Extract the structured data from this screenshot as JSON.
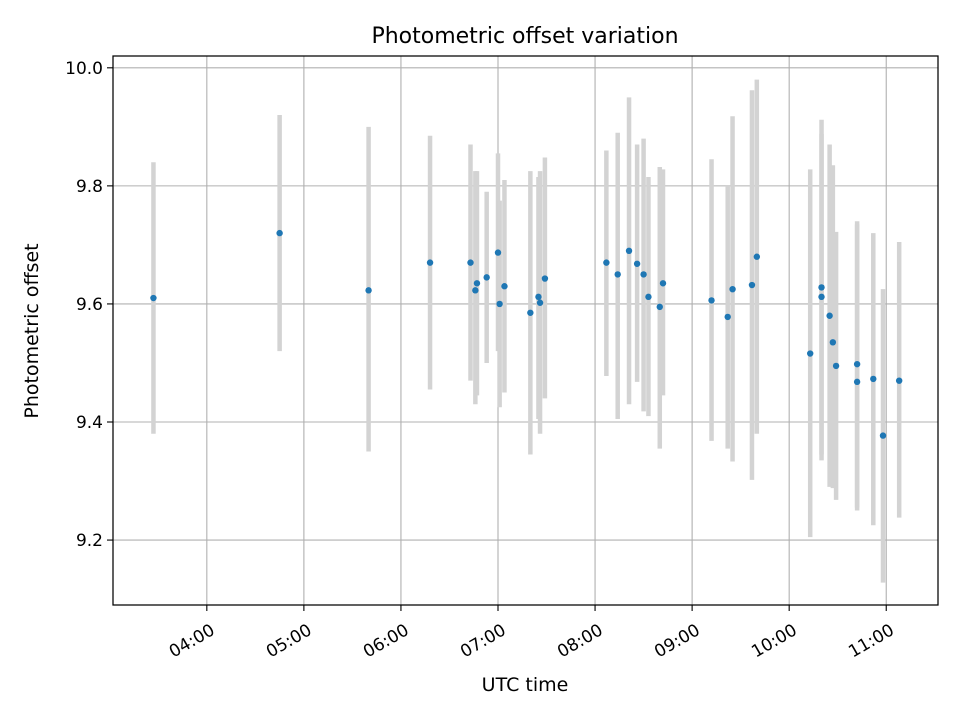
{
  "chart_data": {
    "type": "scatter",
    "title": "Photometric offset variation",
    "xlabel": "UTC time",
    "ylabel": "Photometric offset",
    "x_ticks": [
      "04:00",
      "05:00",
      "06:00",
      "07:00",
      "08:00",
      "09:00",
      "10:00",
      "11:00"
    ],
    "y_ticks": [
      "9.2",
      "9.4",
      "9.6",
      "9.8",
      "10.0"
    ],
    "xlim": [
      "03:02",
      "11:32"
    ],
    "ylim": [
      9.09,
      10.02
    ],
    "grid": true,
    "legend": "none",
    "point_color": "#1f77b4",
    "errorbar_color": "#d3d3d3",
    "points": [
      {
        "x": "03:27",
        "y": 9.61,
        "ylow": 9.38,
        "yhigh": 9.84
      },
      {
        "x": "04:45",
        "y": 9.72,
        "ylow": 9.52,
        "yhigh": 9.92
      },
      {
        "x": "05:40",
        "y": 9.623,
        "ylow": 9.35,
        "yhigh": 9.9
      },
      {
        "x": "06:18",
        "y": 9.67,
        "ylow": 9.455,
        "yhigh": 9.885
      },
      {
        "x": "06:43",
        "y": 9.67,
        "ylow": 9.47,
        "yhigh": 9.87
      },
      {
        "x": "06:46",
        "y": 9.623,
        "ylow": 9.43,
        "yhigh": 9.825
      },
      {
        "x": "06:47",
        "y": 9.635,
        "ylow": 9.445,
        "yhigh": 9.825
      },
      {
        "x": "06:53",
        "y": 9.645,
        "ylow": 9.5,
        "yhigh": 9.79
      },
      {
        "x": "07:00",
        "y": 9.687,
        "ylow": 9.52,
        "yhigh": 9.855
      },
      {
        "x": "07:01",
        "y": 9.6,
        "ylow": 9.425,
        "yhigh": 9.775
      },
      {
        "x": "07:04",
        "y": 9.63,
        "ylow": 9.45,
        "yhigh": 9.81
      },
      {
        "x": "07:20",
        "y": 9.585,
        "ylow": 9.345,
        "yhigh": 9.825
      },
      {
        "x": "07:25",
        "y": 9.612,
        "ylow": 9.405,
        "yhigh": 9.815
      },
      {
        "x": "07:26",
        "y": 9.602,
        "ylow": 9.38,
        "yhigh": 9.825
      },
      {
        "x": "07:29",
        "y": 9.643,
        "ylow": 9.44,
        "yhigh": 9.848
      },
      {
        "x": "08:07",
        "y": 9.67,
        "ylow": 9.478,
        "yhigh": 9.86
      },
      {
        "x": "08:14",
        "y": 9.65,
        "ylow": 9.405,
        "yhigh": 9.89
      },
      {
        "x": "08:21",
        "y": 9.69,
        "ylow": 9.43,
        "yhigh": 9.95
      },
      {
        "x": "08:26",
        "y": 9.668,
        "ylow": 9.468,
        "yhigh": 9.87
      },
      {
        "x": "08:30",
        "y": 9.65,
        "ylow": 9.418,
        "yhigh": 9.88
      },
      {
        "x": "08:33",
        "y": 9.612,
        "ylow": 9.41,
        "yhigh": 9.815
      },
      {
        "x": "08:40",
        "y": 9.595,
        "ylow": 9.355,
        "yhigh": 9.832
      },
      {
        "x": "08:42",
        "y": 9.635,
        "ylow": 9.445,
        "yhigh": 9.828
      },
      {
        "x": "09:12",
        "y": 9.606,
        "ylow": 9.368,
        "yhigh": 9.845
      },
      {
        "x": "09:22",
        "y": 9.578,
        "ylow": 9.355,
        "yhigh": 9.8
      },
      {
        "x": "09:25",
        "y": 9.625,
        "ylow": 9.333,
        "yhigh": 9.918
      },
      {
        "x": "09:37",
        "y": 9.632,
        "ylow": 9.302,
        "yhigh": 9.962
      },
      {
        "x": "09:40",
        "y": 9.68,
        "ylow": 9.38,
        "yhigh": 9.98
      },
      {
        "x": "10:13",
        "y": 9.516,
        "ylow": 9.205,
        "yhigh": 9.828
      },
      {
        "x": "10:20",
        "y": 9.628,
        "ylow": 9.345,
        "yhigh": 9.912
      },
      {
        "x": "10:20",
        "y": 9.612,
        "ylow": 9.335,
        "yhigh": 9.888
      },
      {
        "x": "10:25",
        "y": 9.58,
        "ylow": 9.29,
        "yhigh": 9.87
      },
      {
        "x": "10:27",
        "y": 9.535,
        "ylow": 9.288,
        "yhigh": 9.835
      },
      {
        "x": "10:29",
        "y": 9.495,
        "ylow": 9.268,
        "yhigh": 9.722
      },
      {
        "x": "10:42",
        "y": 9.498,
        "ylow": 9.255,
        "yhigh": 9.74
      },
      {
        "x": "10:42",
        "y": 9.468,
        "ylow": 9.25,
        "yhigh": 9.735
      },
      {
        "x": "10:52",
        "y": 9.473,
        "ylow": 9.225,
        "yhigh": 9.72
      },
      {
        "x": "10:58",
        "y": 9.377,
        "ylow": 9.128,
        "yhigh": 9.625
      },
      {
        "x": "11:08",
        "y": 9.47,
        "ylow": 9.238,
        "yhigh": 9.705
      }
    ]
  }
}
